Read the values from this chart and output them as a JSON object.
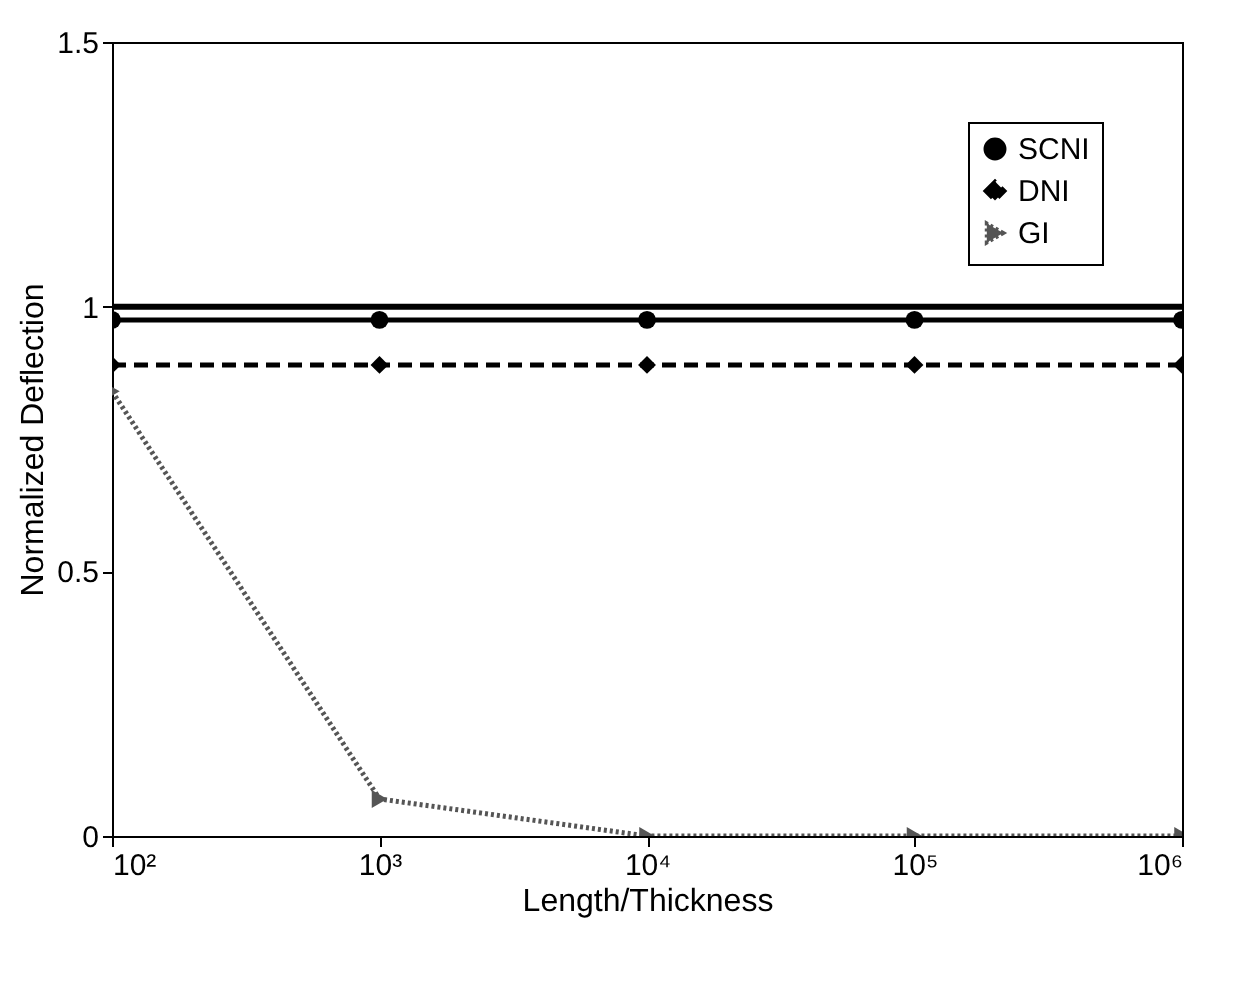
{
  "chart_data": {
    "type": "line",
    "xlabel": "Length/Thickness",
    "ylabel": "Normalized Deflection",
    "x": [
      100,
      1000,
      10000,
      100000,
      1000000
    ],
    "series": [
      {
        "name": "SCNI",
        "color": "#000000",
        "marker": "circle",
        "line_style": "solid",
        "values": [
          0.975,
          0.975,
          0.975,
          0.975,
          0.975
        ]
      },
      {
        "name": "DNI",
        "color": "#000000",
        "marker": "diamond",
        "line_style": "dashed",
        "values": [
          0.89,
          0.89,
          0.89,
          0.89,
          0.89
        ]
      },
      {
        "name": "GI",
        "color": "#555555",
        "marker": "triangle",
        "line_style": "dotted",
        "values": [
          0.84,
          0.07,
          0,
          0,
          0
        ]
      }
    ],
    "ref_lines": [
      {
        "axis": "y",
        "value": 1,
        "color": "#000000",
        "line_style": "solid"
      }
    ],
    "log": "x",
    "xlim": [
      100,
      1000000
    ],
    "xticks": [
      {
        "value": 100,
        "label": "10²"
      },
      {
        "value": 1000,
        "label": "10³"
      },
      {
        "value": 10000,
        "label": "10⁴"
      },
      {
        "value": 100000,
        "label": "10⁵"
      },
      {
        "value": 1000000,
        "label": "10⁶"
      }
    ],
    "ylim": [
      0,
      1.5
    ],
    "yticks": [
      0,
      0.5,
      1,
      1.5
    ],
    "grid": false,
    "legend": "top right"
  }
}
